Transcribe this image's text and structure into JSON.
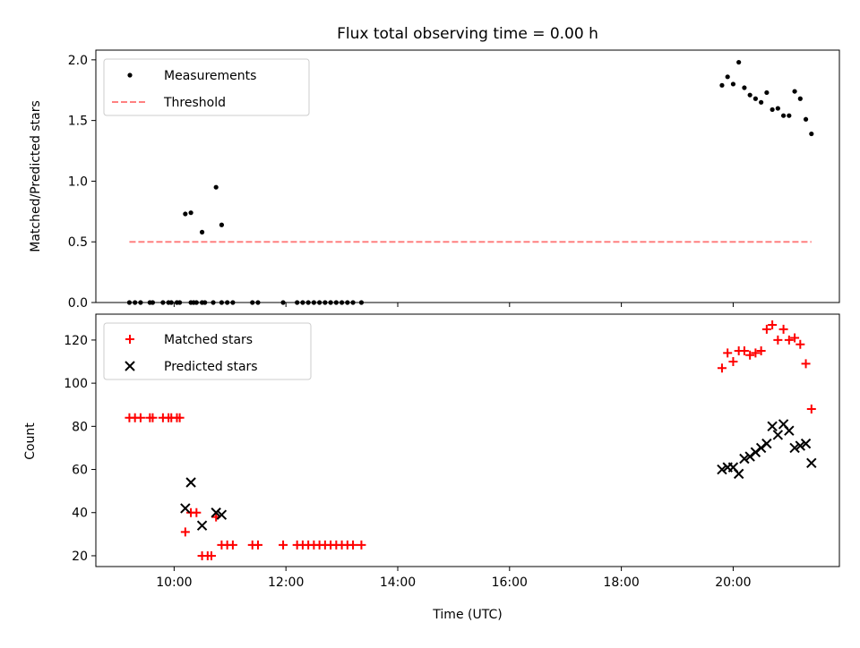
{
  "chart_data": [
    {
      "type": "scatter",
      "title": "Flux total observing time = 0.00 h",
      "xlabel": "",
      "ylabel": "Matched/Predicted stars",
      "xlim": [
        "08:36",
        "21:54"
      ],
      "ylim": [
        0,
        2.08
      ],
      "yticks": [
        0,
        0.5,
        1.0,
        1.5,
        2.0
      ],
      "ytick_labels": [
        "0.0",
        "0.5",
        "1.0",
        "1.5",
        "2.0"
      ],
      "xticks": [
        "10:00",
        "12:00",
        "14:00",
        "16:00",
        "18:00",
        "20:00"
      ],
      "xtick_labels_shown": false,
      "grid": false,
      "legend": {
        "placement": "upper-left",
        "entries": [
          "Measurements",
          "Threshold"
        ]
      },
      "series": [
        {
          "name": "Measurements",
          "marker": "dot",
          "color": "#000000",
          "points": [
            [
              "09:12",
              0
            ],
            [
              "09:18",
              0
            ],
            [
              "09:24",
              0
            ],
            [
              "09:34",
              0
            ],
            [
              "09:37",
              0
            ],
            [
              "09:48",
              0
            ],
            [
              "09:54",
              0
            ],
            [
              "09:57",
              0
            ],
            [
              "10:03",
              0
            ],
            [
              "10:06",
              0
            ],
            [
              "10:18",
              0
            ],
            [
              "10:21",
              0
            ],
            [
              "10:24",
              0
            ],
            [
              "10:30",
              0
            ],
            [
              "10:33",
              0
            ],
            [
              "10:42",
              0
            ],
            [
              "10:51",
              0
            ],
            [
              "10:57",
              0
            ],
            [
              "11:03",
              0
            ],
            [
              "11:24",
              0
            ],
            [
              "11:30",
              0
            ],
            [
              "11:57",
              0
            ],
            [
              "12:12",
              0
            ],
            [
              "12:18",
              0
            ],
            [
              "12:24",
              0
            ],
            [
              "12:30",
              0
            ],
            [
              "12:36",
              0
            ],
            [
              "12:42",
              0
            ],
            [
              "12:48",
              0
            ],
            [
              "12:54",
              0
            ],
            [
              "13:00",
              0
            ],
            [
              "13:06",
              0
            ],
            [
              "13:12",
              0
            ],
            [
              "13:21",
              0
            ],
            [
              "10:12",
              0.73
            ],
            [
              "10:18",
              0.74
            ],
            [
              "10:30",
              0.58
            ],
            [
              "10:45",
              0.95
            ],
            [
              "10:51",
              0.64
            ],
            [
              "19:48",
              1.79
            ],
            [
              "19:54",
              1.86
            ],
            [
              "20:00",
              1.8
            ],
            [
              "20:06",
              1.98
            ],
            [
              "20:12",
              1.77
            ],
            [
              "20:18",
              1.71
            ],
            [
              "20:24",
              1.68
            ],
            [
              "20:30",
              1.65
            ],
            [
              "20:36",
              1.73
            ],
            [
              "20:42",
              1.59
            ],
            [
              "20:48",
              1.6
            ],
            [
              "20:54",
              1.54
            ],
            [
              "21:00",
              1.54
            ],
            [
              "21:06",
              1.74
            ],
            [
              "21:12",
              1.68
            ],
            [
              "21:18",
              1.51
            ],
            [
              "21:24",
              1.39
            ]
          ]
        },
        {
          "name": "Threshold",
          "line_style": "dashed",
          "color": "#ff8080",
          "points": [
            [
              "09:12",
              0.5
            ],
            [
              "21:24",
              0.5
            ]
          ]
        }
      ]
    },
    {
      "type": "scatter",
      "title": "",
      "xlabel": "Time (UTC)",
      "ylabel": "Count",
      "xlim": [
        "08:36",
        "21:54"
      ],
      "ylim": [
        15,
        132
      ],
      "yticks": [
        20,
        40,
        60,
        80,
        100,
        120
      ],
      "ytick_labels": [
        "20",
        "40",
        "60",
        "80",
        "100",
        "120"
      ],
      "xticks": [
        "10:00",
        "12:00",
        "14:00",
        "16:00",
        "18:00",
        "20:00"
      ],
      "xtick_labels": [
        "10:00",
        "12:00",
        "14:00",
        "16:00",
        "18:00",
        "20:00"
      ],
      "grid": false,
      "legend": {
        "placement": "upper-left",
        "entries": [
          "Matched stars",
          "Predicted stars"
        ]
      },
      "series": [
        {
          "name": "Matched stars",
          "marker": "plus",
          "color": "#ff0000",
          "points": [
            [
              "09:12",
              84
            ],
            [
              "09:18",
              84
            ],
            [
              "09:24",
              84
            ],
            [
              "09:34",
              84
            ],
            [
              "09:37",
              84
            ],
            [
              "09:48",
              84
            ],
            [
              "09:54",
              84
            ],
            [
              "09:57",
              84
            ],
            [
              "10:03",
              84
            ],
            [
              "10:06",
              84
            ],
            [
              "10:12",
              31
            ],
            [
              "10:18",
              40
            ],
            [
              "10:24",
              40
            ],
            [
              "10:30",
              20
            ],
            [
              "10:36",
              20
            ],
            [
              "10:40",
              20
            ],
            [
              "10:45",
              38
            ],
            [
              "10:51",
              25
            ],
            [
              "10:57",
              25
            ],
            [
              "11:03",
              25
            ],
            [
              "11:24",
              25
            ],
            [
              "11:30",
              25
            ],
            [
              "11:57",
              25
            ],
            [
              "12:12",
              25
            ],
            [
              "12:18",
              25
            ],
            [
              "12:24",
              25
            ],
            [
              "12:30",
              25
            ],
            [
              "12:36",
              25
            ],
            [
              "12:42",
              25
            ],
            [
              "12:48",
              25
            ],
            [
              "12:54",
              25
            ],
            [
              "13:00",
              25
            ],
            [
              "13:06",
              25
            ],
            [
              "13:12",
              25
            ],
            [
              "13:21",
              25
            ],
            [
              "19:48",
              107
            ],
            [
              "19:54",
              114
            ],
            [
              "20:00",
              110
            ],
            [
              "20:06",
              115
            ],
            [
              "20:12",
              115
            ],
            [
              "20:18",
              113
            ],
            [
              "20:24",
              114
            ],
            [
              "20:30",
              115
            ],
            [
              "20:36",
              125
            ],
            [
              "20:42",
              127
            ],
            [
              "20:48",
              120
            ],
            [
              "20:54",
              125
            ],
            [
              "21:00",
              120
            ],
            [
              "21:06",
              121
            ],
            [
              "21:12",
              118
            ],
            [
              "21:18",
              109
            ],
            [
              "21:24",
              88
            ]
          ]
        },
        {
          "name": "Predicted stars",
          "marker": "x",
          "color": "#000000",
          "points": [
            [
              "10:12",
              42
            ],
            [
              "10:18",
              54
            ],
            [
              "10:30",
              34
            ],
            [
              "10:45",
              40
            ],
            [
              "10:51",
              39
            ],
            [
              "19:48",
              60
            ],
            [
              "19:54",
              61
            ],
            [
              "20:00",
              61
            ],
            [
              "20:06",
              58
            ],
            [
              "20:12",
              65
            ],
            [
              "20:18",
              66
            ],
            [
              "20:24",
              68
            ],
            [
              "20:30",
              70
            ],
            [
              "20:36",
              72
            ],
            [
              "20:42",
              80
            ],
            [
              "20:48",
              76
            ],
            [
              "20:54",
              81
            ],
            [
              "21:00",
              78
            ],
            [
              "21:06",
              70
            ],
            [
              "21:12",
              71
            ],
            [
              "21:18",
              72
            ],
            [
              "21:24",
              63
            ]
          ]
        }
      ]
    }
  ]
}
